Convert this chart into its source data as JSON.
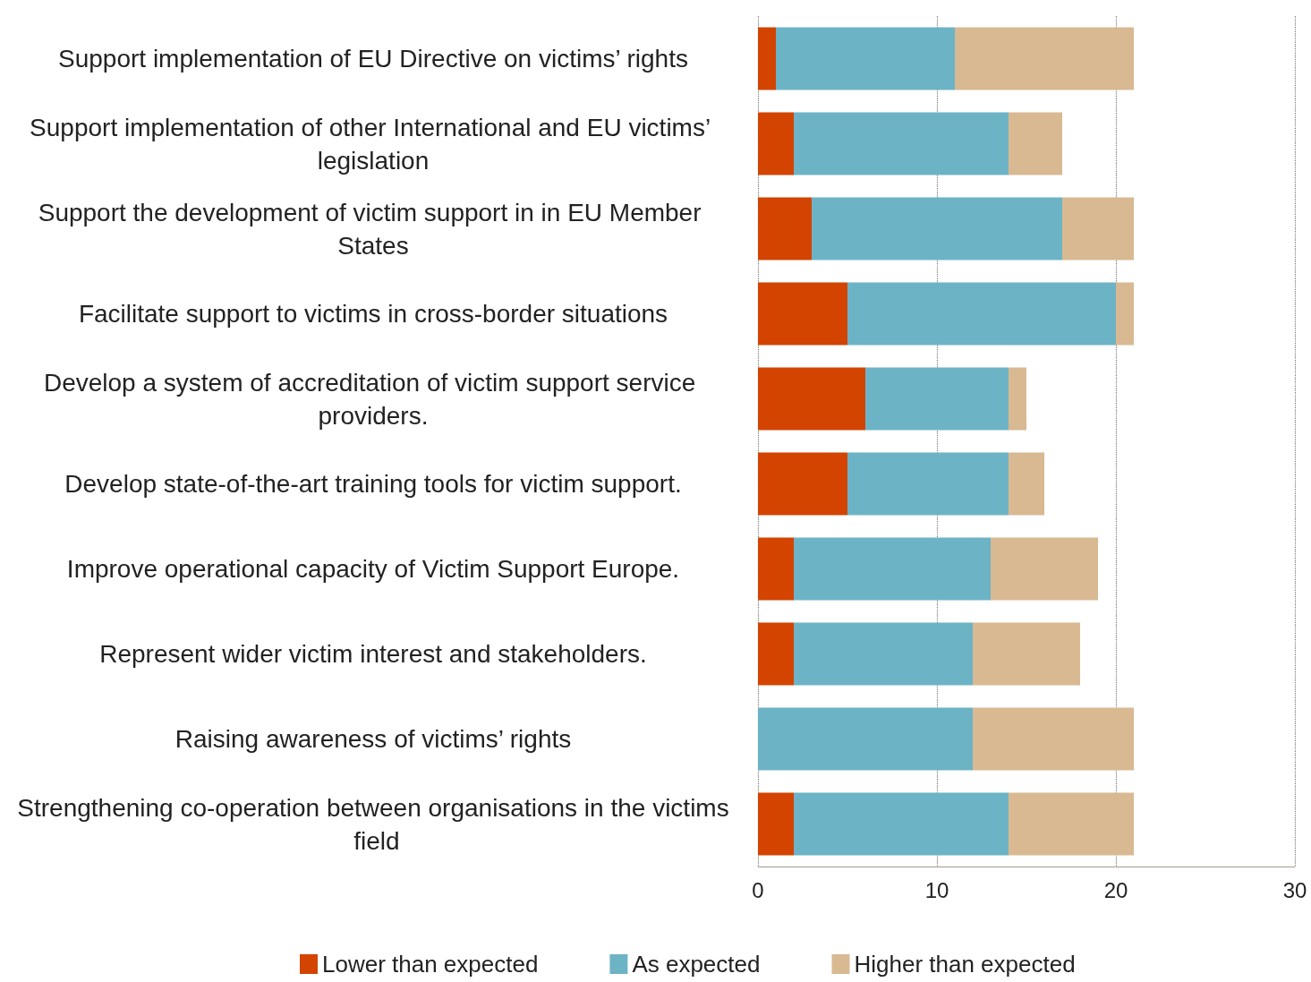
{
  "chart_data": {
    "type": "bar",
    "orientation": "horizontal",
    "stacked": true,
    "categories": [
      "Support implementation of EU Directive on victims’ rights",
      "Support implementation of other International and EU victims’ legislation",
      "Support the development of victim support in in EU Member States",
      "Facilitate support to victims in cross-border situations",
      "Develop a system of accreditation of victim support service providers.",
      "Develop state-of-the-art training tools for victim support.",
      "Improve operational capacity of Victim Support Europe.",
      "Represent wider victim interest and stakeholders.",
      "Raising awareness of victims’ rights",
      "Strengthening co-operation between organisations in the victims field"
    ],
    "series": [
      {
        "name": "Lower than expected",
        "color": "#d24400",
        "values": [
          1,
          2,
          3,
          5,
          6,
          5,
          2,
          2,
          0,
          2
        ]
      },
      {
        "name": "As expected",
        "color": "#6db3c6",
        "values": [
          10,
          12,
          14,
          15,
          8,
          9,
          11,
          10,
          12,
          12
        ]
      },
      {
        "name": "Higher than expected",
        "color": "#d8b992",
        "values": [
          10,
          3,
          4,
          1,
          1,
          2,
          6,
          6,
          9,
          7
        ]
      }
    ],
    "xlim": [
      0,
      30
    ],
    "xticks": [
      0,
      10,
      20,
      30
    ],
    "grid": "x",
    "legend": "bottom"
  }
}
